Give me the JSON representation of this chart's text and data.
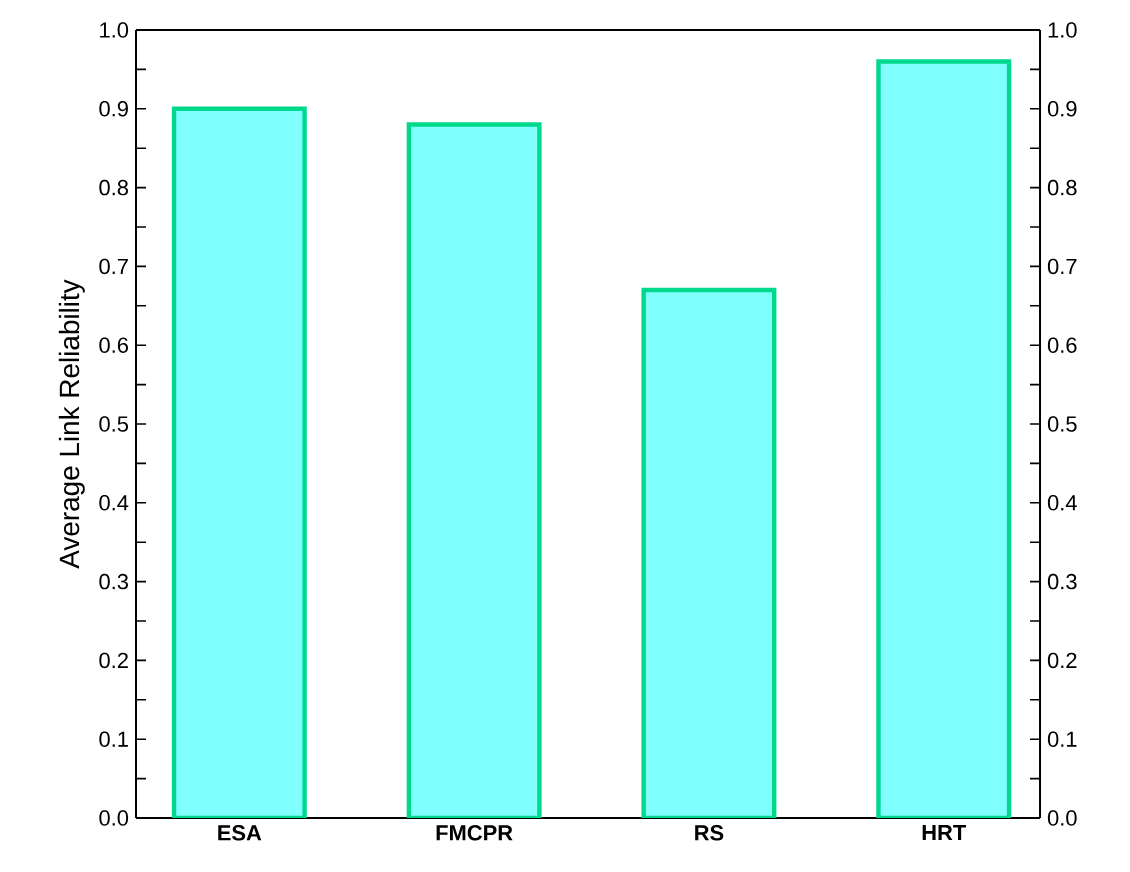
{
  "chart_data": {
    "type": "bar",
    "ylabel": "Average Link Reliability",
    "categories": [
      "ESA",
      "FMCPR",
      "RS",
      "HRT"
    ],
    "values": [
      0.9,
      0.88,
      0.67,
      0.96
    ],
    "color": "#80ffff",
    "ylim": [
      0,
      1
    ],
    "yticks": [
      {
        "value": 0,
        "label": "0.0"
      },
      {
        "value": 0.05,
        "label": null
      },
      0.1,
      {
        "value": 0.15,
        "label": null
      },
      0.2,
      {
        "value": 0.25,
        "label": null
      },
      0.3,
      {
        "value": 0.35,
        "label": null
      },
      0.4,
      {
        "value": 0.45,
        "label": null
      },
      0.5,
      {
        "value": 0.55,
        "label": null
      },
      0.6,
      {
        "value": 0.65,
        "label": null
      },
      0.7,
      {
        "value": 0.75,
        "label": null
      },
      0.8,
      {
        "value": 0.85,
        "label": null
      },
      0.9,
      {
        "value": 0.95,
        "label": null
      },
      {
        "value": 1,
        "label": "1.0"
      }
    ],
    "y2lim": [
      0,
      1
    ],
    "y2ticks": [
      {
        "value": 0,
        "label": "0.0"
      },
      {
        "value": 0.05,
        "label": null
      },
      0.1,
      {
        "value": 0.15,
        "label": null
      },
      0.2,
      {
        "value": 0.25,
        "label": null
      },
      0.3,
      {
        "value": 0.35,
        "label": null
      },
      0.4,
      {
        "value": 0.45,
        "label": null
      },
      0.5,
      {
        "value": 0.55,
        "label": null
      },
      0.6,
      {
        "value": 0.65,
        "label": null
      },
      0.7,
      {
        "value": 0.75,
        "label": null
      },
      0.8,
      {
        "value": 0.85,
        "label": null
      },
      0.9,
      {
        "value": 0.95,
        "label": null
      },
      {
        "value": 1,
        "label": "1.0"
      }
    ],
    "grid": false
  }
}
